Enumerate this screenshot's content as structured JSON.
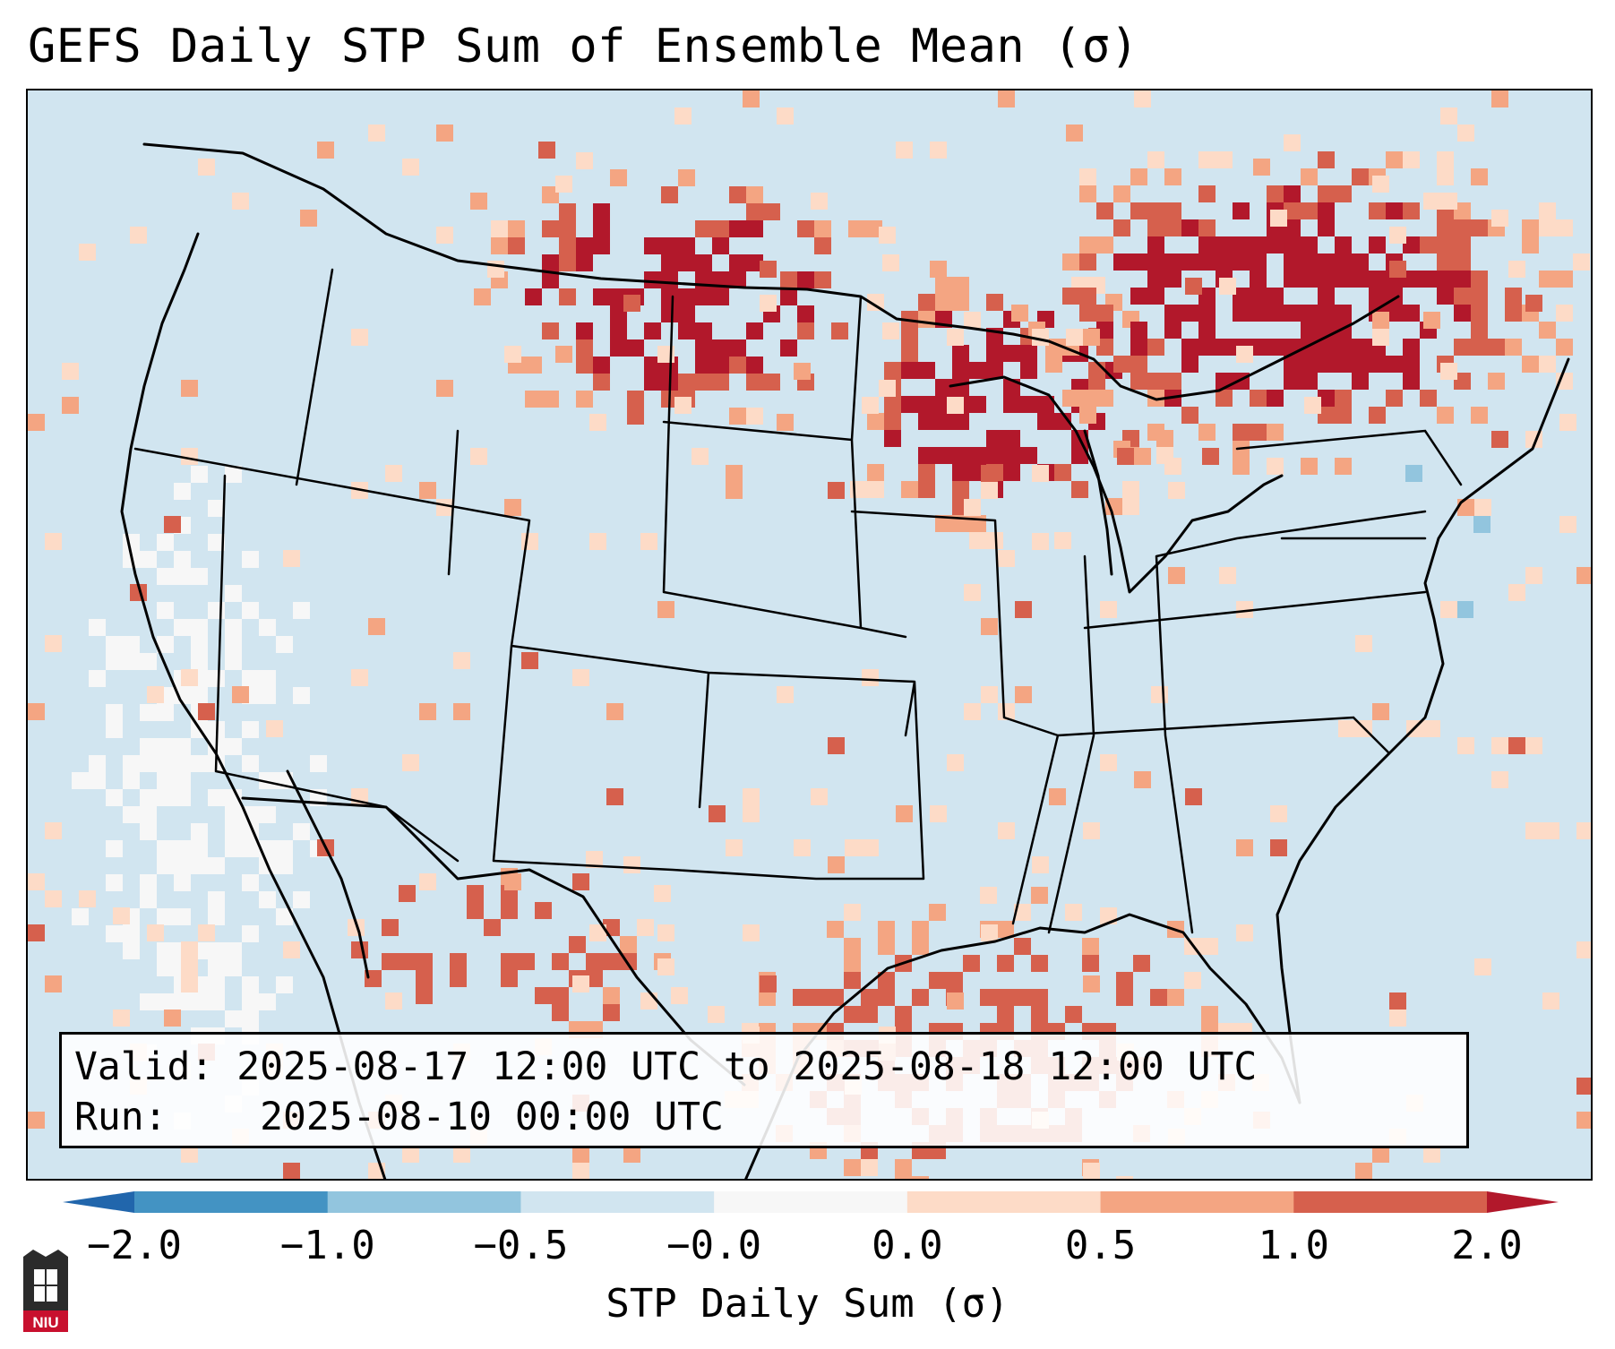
{
  "title": "GEFS Daily STP Sum of Ensemble Mean (σ)",
  "info": {
    "valid_label": "Valid:",
    "valid_value": "2025-08-17 12:00 UTC to 2025-08-18 12:00 UTC",
    "run_label": "Run:",
    "run_value": "2025-08-10 00:00 UTC"
  },
  "colorbar": {
    "label": "STP Daily Sum (σ)",
    "ticks": [
      "−2.0",
      "−1.0",
      "−0.5",
      "−0.0",
      "0.0",
      "0.5",
      "1.0",
      "2.0"
    ],
    "bins": [
      {
        "from": "-2.0",
        "to": "-1.0",
        "color": "#4393c3"
      },
      {
        "from": "-1.0",
        "to": "-0.5",
        "color": "#92c5de"
      },
      {
        "from": "-0.5",
        "to": "-0.0",
        "color": "#d1e5f0"
      },
      {
        "from": "-0.0",
        "to": "0.0",
        "color": "#f7f7f7"
      },
      {
        "from": "0.0",
        "to": "0.5",
        "color": "#fddbc7"
      },
      {
        "from": "0.5",
        "to": "1.0",
        "color": "#f4a582"
      },
      {
        "from": "1.0",
        "to": "2.0",
        "color": "#d6604d"
      }
    ],
    "extend_low_color": "#2166ac",
    "extend_high_color": "#b2182b"
  },
  "map": {
    "background_color": "#d1e5f0",
    "regions": [
      {
        "name": "montana-saskatchewan",
        "level": "strong"
      },
      {
        "name": "upper-midwest-ontario",
        "level": "strong"
      },
      {
        "name": "great-lakes-quebec",
        "level": "strong"
      },
      {
        "name": "south-texas-gulf",
        "level": "moderate"
      },
      {
        "name": "northern-mexico",
        "level": "moderate"
      },
      {
        "name": "west-coast-offshore",
        "level": "neutral"
      },
      {
        "name": "mid-atlantic-coast",
        "level": "negative"
      }
    ]
  },
  "logo": {
    "text": "NIU"
  }
}
